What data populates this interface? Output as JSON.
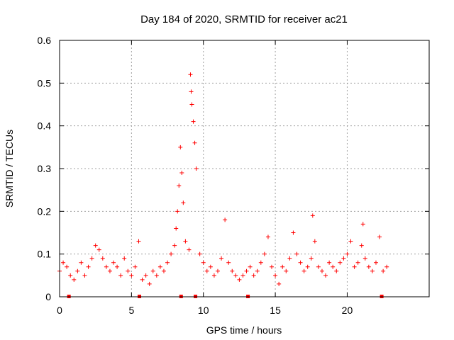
{
  "chart_data": {
    "type": "scatter",
    "title": "Day 184 of 2020, SRMTID for receiver ac21",
    "xlabel": "GPS time / hours",
    "ylabel": "SRMTID / TECUs",
    "xlim": [
      0,
      25.7
    ],
    "ylim": [
      0,
      0.6
    ],
    "xticks": [
      0,
      5,
      10,
      15,
      20
    ],
    "yticks": [
      0,
      0.1,
      0.2,
      0.3,
      0.4,
      0.5,
      0.6
    ],
    "grid": true,
    "marker": "+",
    "color": "#ff0000",
    "gap_markers_x": [
      0.65,
      5.55,
      8.45,
      9.45,
      13.1,
      22.4
    ],
    "series": [
      {
        "name": "SRMTID",
        "x": [
          0.0,
          0.25,
          0.5,
          0.75,
          1.0,
          1.25,
          1.5,
          1.75,
          2.0,
          2.25,
          2.5,
          2.75,
          3.0,
          3.25,
          3.5,
          3.75,
          4.0,
          4.25,
          4.5,
          4.75,
          5.0,
          5.25,
          5.5,
          5.75,
          6.0,
          6.25,
          6.5,
          6.75,
          7.0,
          7.25,
          7.5,
          7.75,
          8.0,
          8.1,
          8.2,
          8.3,
          8.4,
          8.5,
          8.6,
          8.75,
          9.0,
          9.1,
          9.15,
          9.2,
          9.3,
          9.4,
          9.5,
          9.75,
          10.0,
          10.25,
          10.5,
          10.75,
          11.0,
          11.25,
          11.5,
          11.75,
          12.0,
          12.25,
          12.5,
          12.75,
          13.0,
          13.25,
          13.5,
          13.75,
          14.0,
          14.25,
          14.5,
          14.75,
          15.0,
          15.25,
          15.5,
          15.75,
          16.0,
          16.25,
          16.5,
          16.75,
          17.0,
          17.25,
          17.5,
          17.6,
          17.75,
          18.0,
          18.25,
          18.5,
          18.75,
          19.0,
          19.25,
          19.5,
          19.75,
          20.0,
          20.25,
          20.5,
          20.75,
          21.0,
          21.1,
          21.25,
          21.5,
          21.75,
          22.0,
          22.25,
          22.5,
          22.75
        ],
        "y": [
          0.06,
          0.08,
          0.07,
          0.05,
          0.04,
          0.06,
          0.08,
          0.05,
          0.07,
          0.09,
          0.12,
          0.11,
          0.09,
          0.07,
          0.06,
          0.08,
          0.07,
          0.05,
          0.09,
          0.06,
          0.05,
          0.07,
          0.13,
          0.04,
          0.05,
          0.03,
          0.06,
          0.05,
          0.07,
          0.06,
          0.08,
          0.1,
          0.12,
          0.16,
          0.2,
          0.26,
          0.35,
          0.29,
          0.22,
          0.13,
          0.11,
          0.52,
          0.48,
          0.45,
          0.41,
          0.36,
          0.3,
          0.1,
          0.08,
          0.06,
          0.07,
          0.05,
          0.06,
          0.09,
          0.18,
          0.08,
          0.06,
          0.05,
          0.04,
          0.05,
          0.06,
          0.07,
          0.05,
          0.06,
          0.08,
          0.1,
          0.14,
          0.07,
          0.05,
          0.03,
          0.07,
          0.06,
          0.09,
          0.15,
          0.1,
          0.08,
          0.06,
          0.07,
          0.09,
          0.19,
          0.13,
          0.07,
          0.06,
          0.05,
          0.08,
          0.07,
          0.06,
          0.08,
          0.09,
          0.1,
          0.13,
          0.07,
          0.08,
          0.12,
          0.17,
          0.09,
          0.07,
          0.06,
          0.08,
          0.14,
          0.06,
          0.07
        ]
      }
    ]
  }
}
